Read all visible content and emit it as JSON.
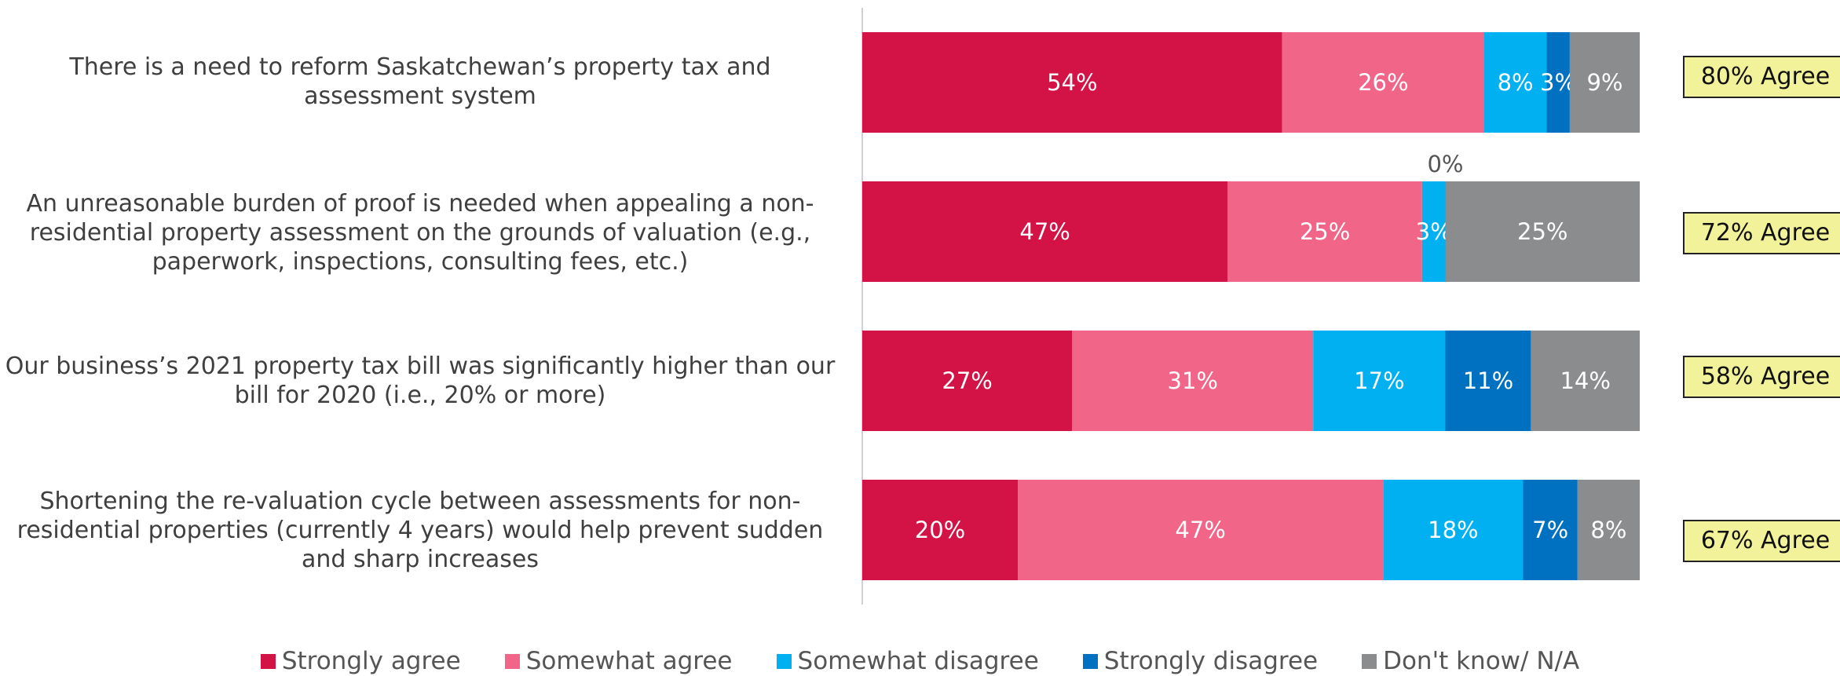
{
  "chart_data": {
    "type": "bar",
    "orientation": "horizontal",
    "stacked": true,
    "categories": [
      "There is a need to reform Saskatchewan’s property tax and assessment system",
      "An unreasonable burden of proof is needed when appealing a non-residential property assessment on the grounds of valuation (e.g., paperwork, inspections, consulting fees, etc.)",
      "Our business’s 2021 property tax bill was significantly higher than our bill for 2020 (i.e., 20% or more)",
      "Shortening the re-valuation cycle between assessments for non-residential properties (currently 4 years) would help prevent sudden and sharp increases"
    ],
    "series": [
      {
        "name": "Strongly agree",
        "color": "#d31245",
        "values": [
          54,
          47,
          27,
          20
        ]
      },
      {
        "name": "Somewhat agree",
        "color": "#f06588",
        "values": [
          26,
          25,
          31,
          47
        ]
      },
      {
        "name": "Somewhat disagree",
        "color": "#00b0f0",
        "values": [
          8,
          3,
          17,
          18
        ]
      },
      {
        "name": "Strongly disagree",
        "color": "#0070c0",
        "values": [
          3,
          0,
          11,
          7
        ]
      },
      {
        "name": "Don't know/ N/A",
        "color": "#8a8c8e",
        "values": [
          9,
          25,
          14,
          8
        ]
      }
    ],
    "agree_totals": [
      "80% Agree",
      "72% Agree",
      "58% Agree",
      "67% Agree"
    ],
    "legend": "bottom",
    "grid": false,
    "xlim": [
      0,
      100
    ]
  }
}
